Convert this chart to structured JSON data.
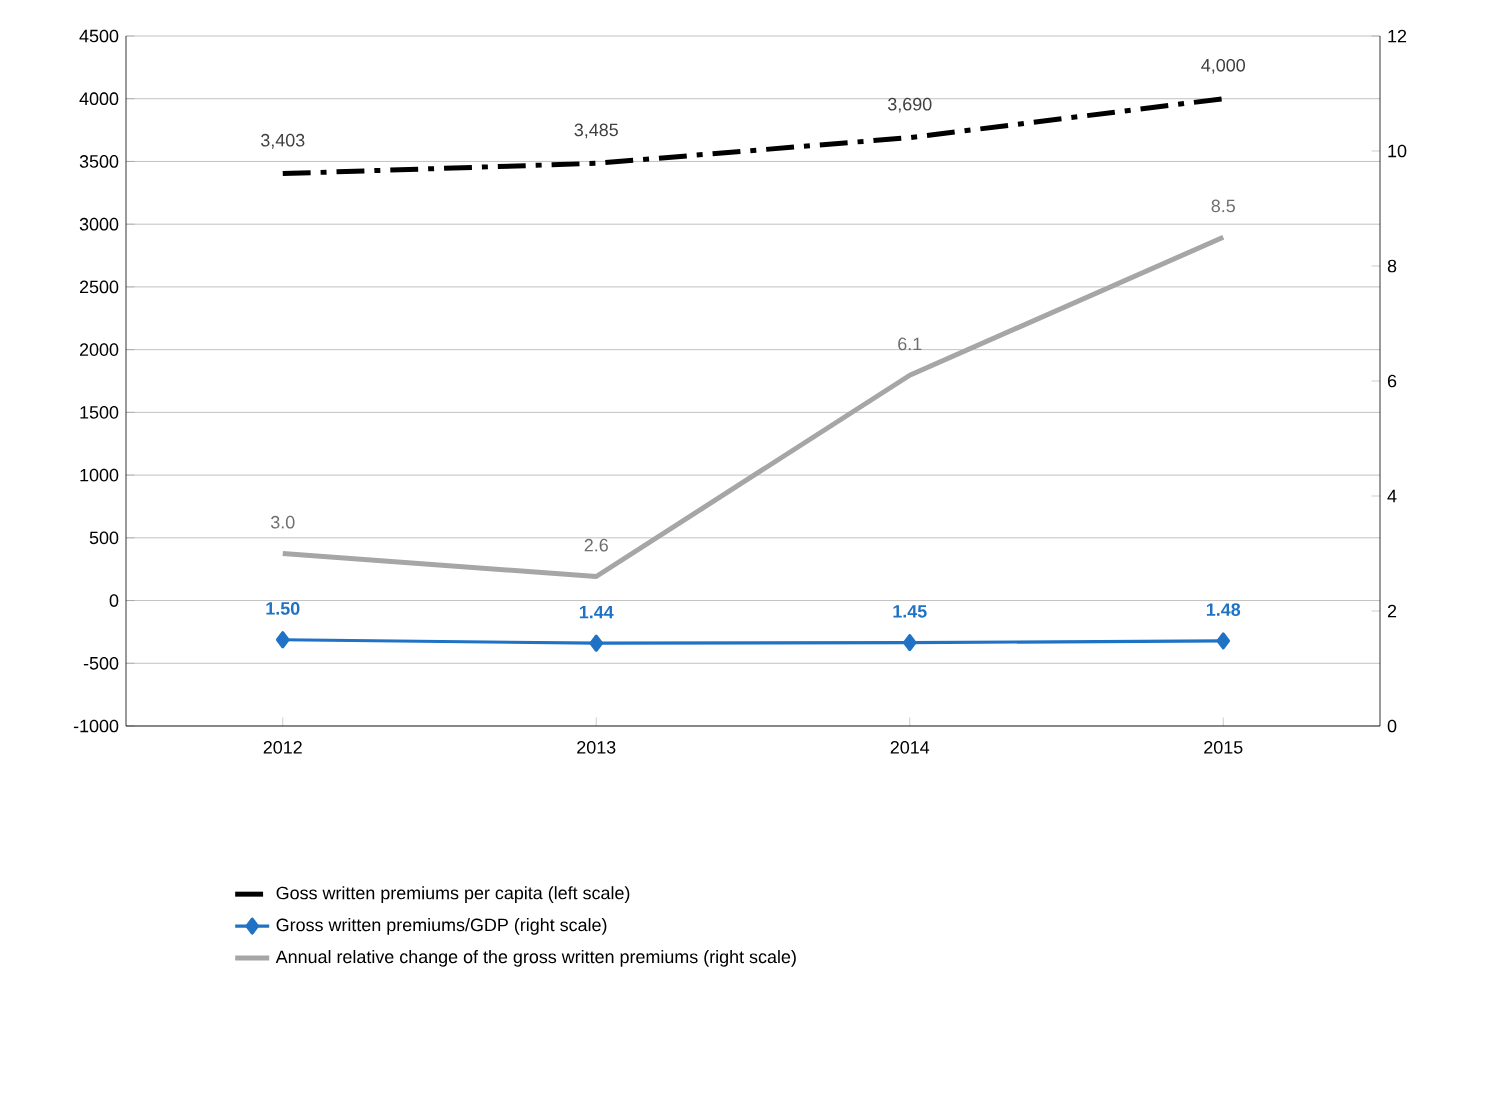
{
  "chart_data": {
    "type": "line",
    "categories": [
      "2012",
      "2013",
      "2014",
      "2015"
    ],
    "series": [
      {
        "name": "Goss written premiums per capita (left scale)",
        "color": "#000000",
        "values": [
          3403,
          3485,
          3690,
          4000
        ],
        "value_labels": [
          "3,403",
          "3,485",
          "3,690",
          "4,000"
        ],
        "line_style": "dashed",
        "marker": "none"
      },
      {
        "name": "Gross written premiums/GDP (right scale)",
        "color": "#1f72c4",
        "values": [
          1.5,
          1.44,
          1.45,
          1.48
        ],
        "value_labels": [
          "1.50",
          "1.44",
          "1.45",
          "1.48"
        ],
        "axis": "y2",
        "line_style": "solid",
        "marker": "diamond"
      },
      {
        "name": "Annual relative change of the gross written premiums (right scale)",
        "color": "#a6a6a6",
        "values": [
          3.0,
          2.6,
          6.1,
          8.5
        ],
        "value_labels": [
          "3.0",
          "2.6",
          "6.1",
          "8.5"
        ],
        "axis": "y2",
        "line_style": "solid",
        "marker": "none"
      }
    ],
    "ylim": [
      -1000,
      4500
    ],
    "yticks": [
      -1000,
      -500,
      0,
      500,
      1000,
      1500,
      2000,
      2500,
      3000,
      3500,
      4000,
      4500
    ],
    "y2lim": [
      0,
      12
    ],
    "y2ticks": [
      0,
      2,
      4,
      6,
      8,
      10,
      12
    ],
    "grid": "y",
    "legend": "bottom"
  }
}
